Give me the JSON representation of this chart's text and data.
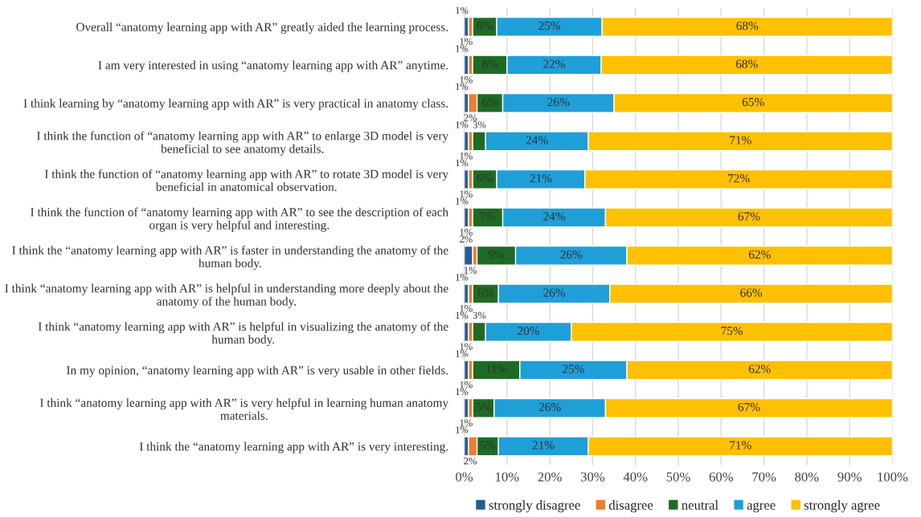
{
  "chart_data": {
    "type": "bar",
    "orientation": "horizontal",
    "stacked": true,
    "grid": "x",
    "legend": "bottom",
    "categories": [
      "Overall “anatomy learning app with AR” greatly aided the learning process.",
      "I am very interested in using “anatomy learning app with AR” anytime.",
      "I think learning by “anatomy learning app with AR” is very practical in anatomy class.",
      "I think the function of “anatomy learning app with AR” to enlarge 3D model is very\nbeneficial to see anatomy details.",
      "I think the function of “anatomy learning app with AR” to rotate 3D model is very\nbeneficial in anatomical observation.",
      "I think the function of “anatomy learning app with AR” to see the description of each\norgan is very helpful and interesting.",
      "I think the “anatomy learning app with AR” is faster in understanding the anatomy of the\nhuman body.",
      "I think “anatomy learning app with AR” is helpful in understanding more deeply about the\nanatomy of the human body.",
      "I think “anatomy learning app with AR” is helpful in visualizing the anatomy of the\nhuman body.",
      "In my opinion, “anatomy learning app with AR” is very usable in other fields.",
      "I think “anatomy learning app with AR” is very helpful in learning human anatomy\nmaterials.",
      "I think the “anatomy learning app with AR” is very interesting."
    ],
    "series": [
      {
        "name": "strongly disagree",
        "color": "#255e91",
        "values": [
          1,
          1,
          1,
          1,
          1,
          1,
          2,
          1,
          1,
          1,
          1,
          1
        ],
        "value_labels": [
          "1%",
          "1%",
          "1%",
          "1%",
          "1%",
          "1%",
          "2%",
          "1%",
          "1%",
          "1%",
          "1%",
          "1%"
        ]
      },
      {
        "name": "disagree",
        "color": "#ed7d31",
        "values": [
          1,
          1,
          2,
          1,
          1,
          1,
          1,
          1,
          1,
          1,
          1,
          2
        ],
        "value_labels": [
          "1%",
          "1%",
          "2%",
          "1%",
          "1%",
          "1%",
          "1%",
          "1%",
          "1%",
          "1%",
          "1%",
          "2%"
        ]
      },
      {
        "name": "neutral",
        "color": "#1e6b24",
        "values": [
          5.6,
          8,
          6,
          3,
          5.6,
          7,
          9,
          6,
          3,
          11,
          5,
          5
        ],
        "value_labels": [
          "6%",
          "8%",
          "6%",
          "3%",
          "6%",
          "7%",
          "9%",
          "6%",
          "3%",
          "11%",
          "5%",
          "5%"
        ]
      },
      {
        "name": "agree",
        "color": "#1f9fd8",
        "values": [
          24.6,
          22,
          26,
          24,
          20.6,
          24,
          26,
          26,
          20,
          25,
          26,
          21
        ],
        "value_labels": [
          "25%",
          "22%",
          "26%",
          "24%",
          "21%",
          "24%",
          "26%",
          "26%",
          "20%",
          "25%",
          "26%",
          "21%"
        ]
      },
      {
        "name": "strongly agree",
        "color": "#ffc000",
        "values": [
          67.8,
          68,
          65,
          71,
          71.8,
          67,
          62,
          66,
          75,
          62,
          67,
          71
        ],
        "value_labels": [
          "68%",
          "68%",
          "65%",
          "71%",
          "72%",
          "67%",
          "62%",
          "66%",
          "75%",
          "62%",
          "67%",
          "71%"
        ]
      }
    ],
    "xlim": [
      0,
      100
    ],
    "xticks": [
      {
        "value": 0,
        "label": "0%"
      },
      {
        "value": 10,
        "label": "10%"
      },
      {
        "value": 20,
        "label": "20%"
      },
      {
        "value": 30,
        "label": "30%"
      },
      {
        "value": 40,
        "label": "40%"
      },
      {
        "value": 50,
        "label": "50%"
      },
      {
        "value": 60,
        "label": "60%"
      },
      {
        "value": 70,
        "label": "70%"
      },
      {
        "value": 80,
        "label": "80%"
      },
      {
        "value": 90,
        "label": "90%"
      },
      {
        "value": 100,
        "label": "100%"
      }
    ]
  }
}
